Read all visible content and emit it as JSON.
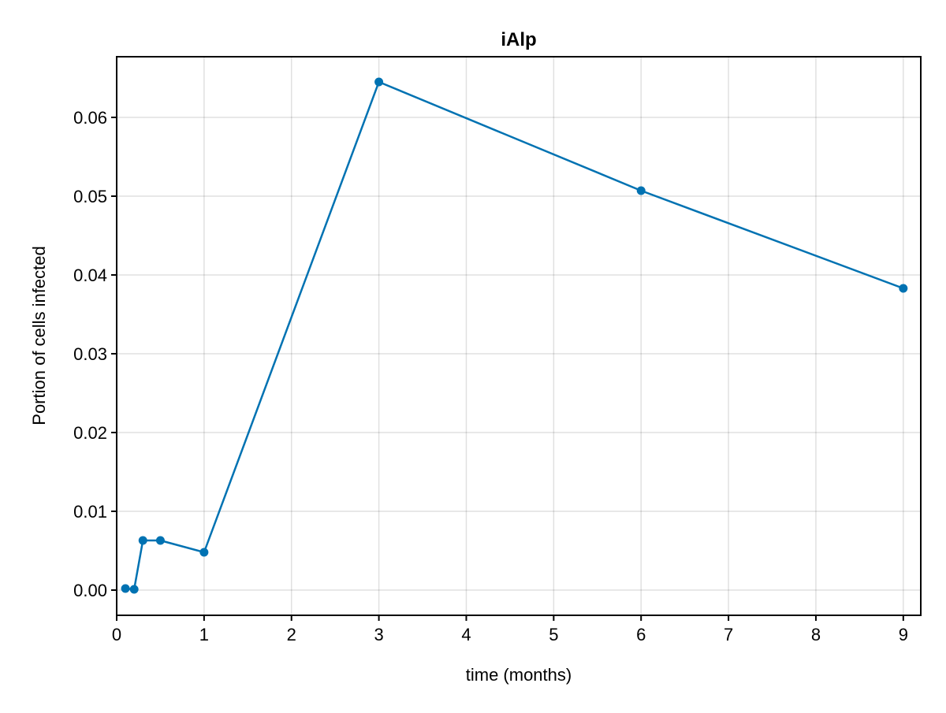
{
  "chart_data": {
    "type": "line",
    "title": "iAlp",
    "xlabel": "time (months)",
    "ylabel": "Portion of cells infected",
    "xlim": [
      0,
      9.2
    ],
    "ylim": [
      -0.0032,
      0.0677
    ],
    "x_ticks": [
      0,
      1,
      2,
      3,
      4,
      5,
      6,
      7,
      8,
      9
    ],
    "x_tick_labels": [
      "0",
      "1",
      "2",
      "3",
      "4",
      "5",
      "6",
      "7",
      "8",
      "9"
    ],
    "y_ticks": [
      0.0,
      0.01,
      0.02,
      0.03,
      0.04,
      0.05,
      0.06
    ],
    "y_tick_labels": [
      "0.00",
      "0.01",
      "0.02",
      "0.03",
      "0.04",
      "0.05",
      "0.06"
    ],
    "grid": true,
    "series": [
      {
        "color": "#0072b2",
        "x": [
          0.1,
          0.2,
          0.3,
          0.5,
          1,
          3,
          6,
          9
        ],
        "y": [
          0.0002,
          0.0001,
          0.0063,
          0.0063,
          0.0048,
          0.0645,
          0.0507,
          0.0383
        ]
      }
    ]
  }
}
